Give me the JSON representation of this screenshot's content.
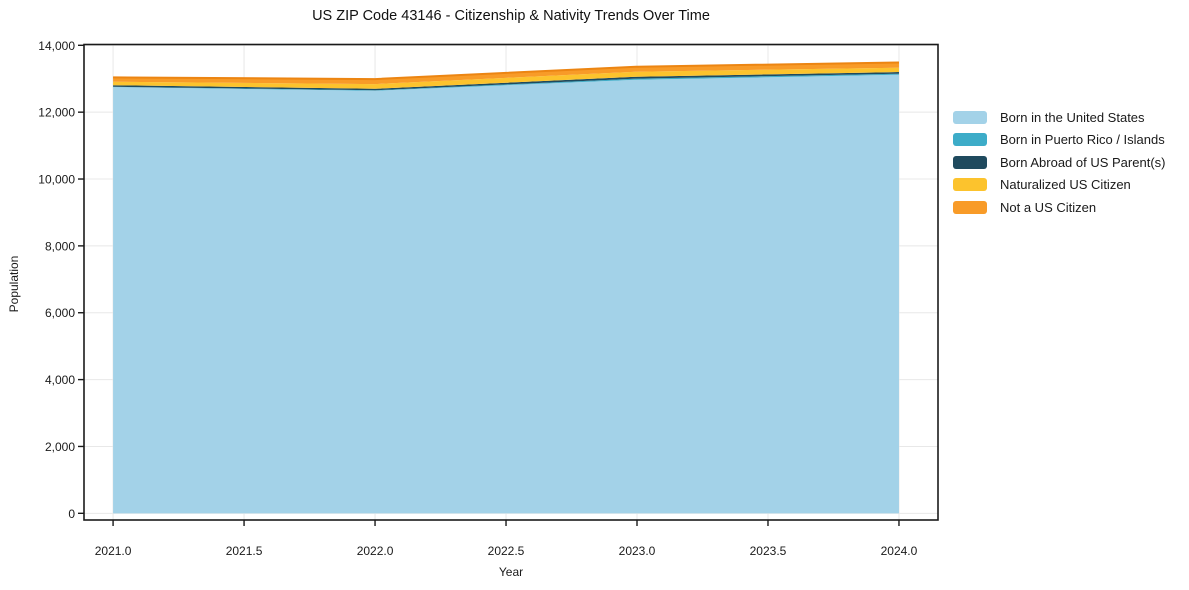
{
  "figure": {
    "title": "US ZIP Code 43146 - Citizenship & Nativity Trends Over Time"
  },
  "chart_data": {
    "type": "area",
    "stacked": true,
    "title": "US ZIP Code 43146 - Citizenship & Nativity Trends Over Time",
    "xlabel": "Year",
    "ylabel": "Population",
    "x": [
      2021,
      2022,
      2023,
      2024
    ],
    "series": [
      {
        "name": "Born in the United States",
        "color": "#a3d2e8",
        "values": [
          12750,
          12640,
          12970,
          13120
        ]
      },
      {
        "name": "Born in Puerto Rico / Islands",
        "color": "#3dacc8",
        "values": [
          10,
          15,
          35,
          30
        ]
      },
      {
        "name": "Born Abroad of US Parent(s)",
        "color": "#1f4a5e",
        "values": [
          45,
          45,
          55,
          50
        ]
      },
      {
        "name": "Naturalized US Citizen",
        "color": "#fcc32d",
        "values": [
          105,
          140,
          150,
          130
        ]
      },
      {
        "name": "Not a US Citizen",
        "color": "#f89b28",
        "values": [
          130,
          150,
          150,
          155
        ]
      }
    ],
    "stack_totals": [
      13040,
      12990,
      13360,
      13485
    ],
    "x_ticks": {
      "values": [
        2021.0,
        2021.5,
        2022.0,
        2022.5,
        2023.0,
        2023.5,
        2024.0
      ],
      "labels": [
        "2021.0",
        "2021.5",
        "2022.0",
        "2022.5",
        "2023.0",
        "2023.5",
        "2024.0"
      ]
    },
    "y_ticks": {
      "values": [
        0,
        2000,
        4000,
        6000,
        8000,
        10000,
        12000,
        14000
      ],
      "labels": [
        "0",
        "2,000",
        "4,000",
        "6,000",
        "8,000",
        "10,000",
        "12,000",
        "14,000"
      ]
    },
    "xlim": [
      2020.889,
      2024.149
    ],
    "ylim": [
      -200,
      14024
    ],
    "grid": true,
    "legend_position": "right-outside",
    "top_edge_color": "#ec8512"
  },
  "colors": {
    "grid": "#e8e8e8",
    "spine": "#1a1a1a",
    "tick_text": "#1a1a1a",
    "background": "#ffffff"
  }
}
